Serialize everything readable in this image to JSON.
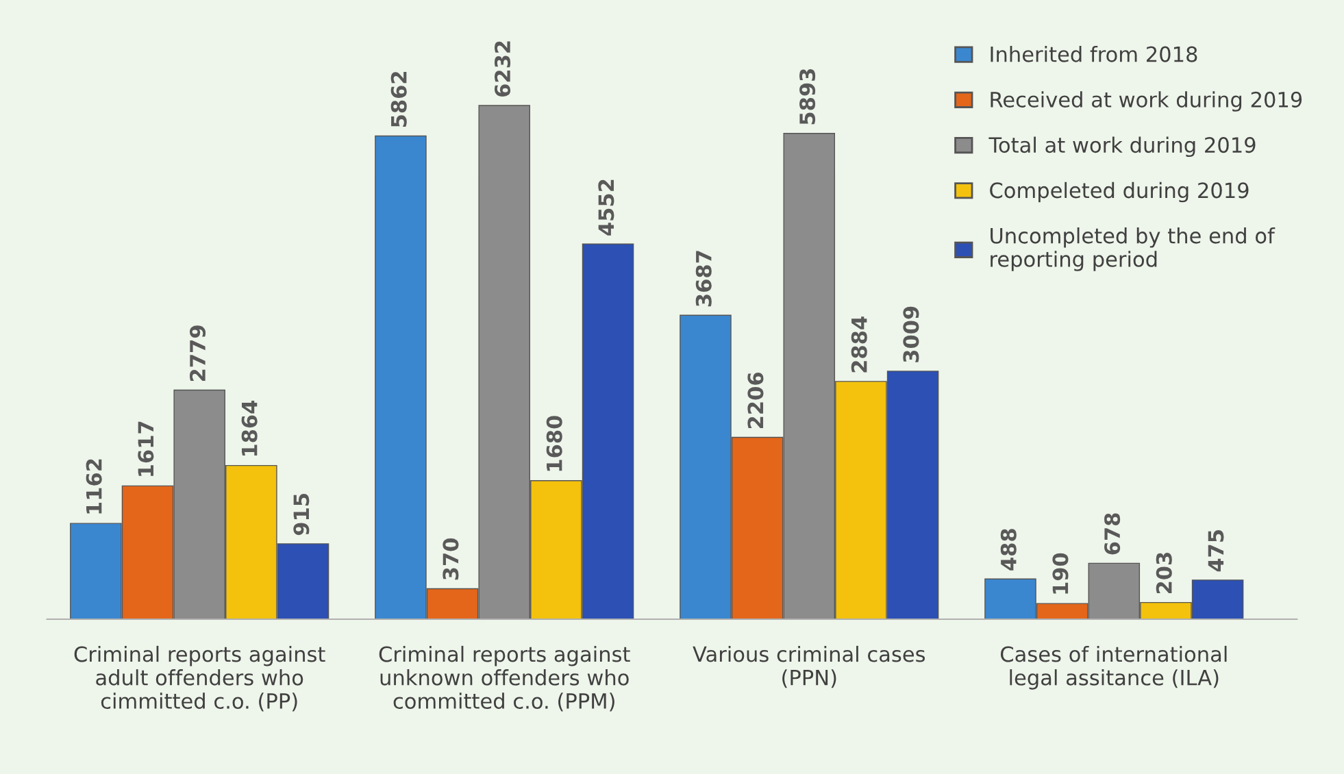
{
  "chart_data": {
    "type": "bar",
    "categories": [
      "Criminal reports against\nadult offenders who\ncimmitted c.o. (PP)",
      "Criminal reports against\nunknown offenders who\ncommitted c.o. (PPM)",
      "Various criminal cases\n(PPN)",
      "Cases of international\nlegal assitance (ILA)"
    ],
    "series": [
      {
        "name": "Inherited from 2018",
        "color": "#3a87d0",
        "values": [
          1162,
          5862,
          3687,
          488
        ]
      },
      {
        "name": "Received at work during 2019",
        "color": "#e3661b",
        "values": [
          1617,
          370,
          2206,
          190
        ]
      },
      {
        "name": "Total at work during 2019",
        "color": "#8c8c8c",
        "values": [
          2779,
          6232,
          5893,
          678
        ]
      },
      {
        "name": "Compeleted during 2019",
        "color": "#f4c20d",
        "values": [
          1864,
          1680,
          2884,
          203
        ]
      },
      {
        "name": "Uncompleted by the end of\nreporting period",
        "color": "#2c50b4",
        "values": [
          915,
          4552,
          3009,
          475
        ]
      }
    ],
    "data_labels": true,
    "legend": "top right",
    "grid": false,
    "tick_labels": "x"
  }
}
